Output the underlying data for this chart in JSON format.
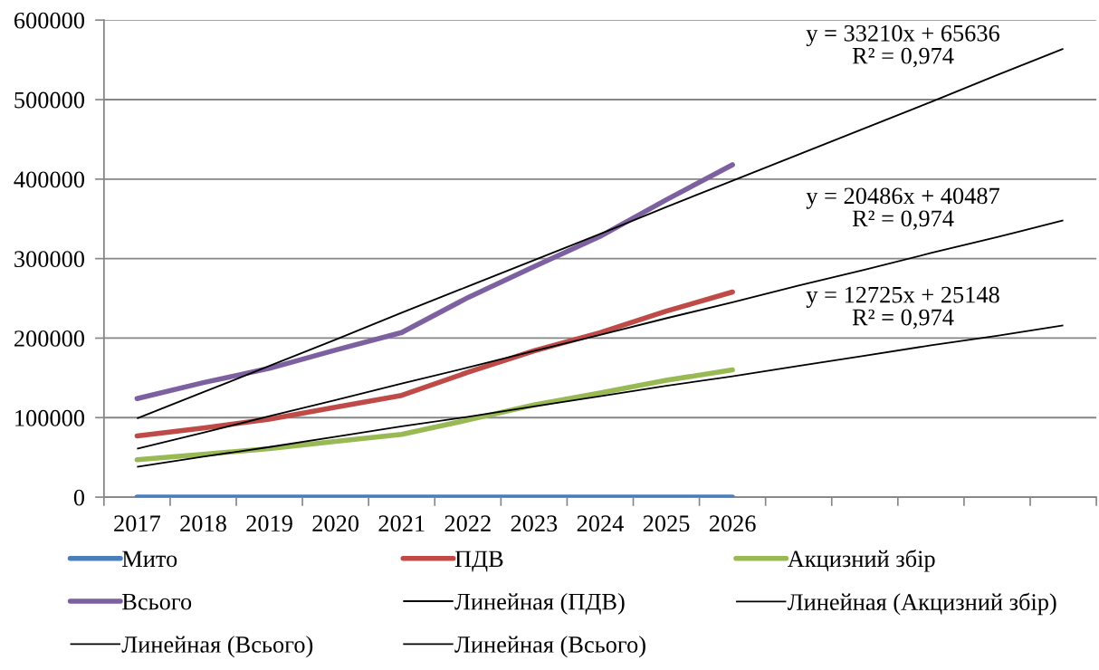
{
  "chart_data": {
    "type": "line",
    "categories": [
      "2017",
      "2018",
      "2019",
      "2020",
      "2021",
      "2022",
      "2023",
      "2024",
      "2025",
      "2026",
      null,
      null,
      null,
      null,
      null
    ],
    "series": [
      {
        "name": "Мито",
        "color": "#4a7ebb",
        "values": [
          0,
          0,
          0,
          0,
          0,
          0,
          0,
          0,
          0,
          0,
          null,
          null,
          null,
          null,
          null
        ]
      },
      {
        "name": "ПДВ",
        "color": "#be4b48",
        "values": [
          77000,
          87000,
          98000,
          113000,
          128000,
          157000,
          184000,
          207000,
          234000,
          258000,
          null,
          null,
          null,
          null,
          null
        ]
      },
      {
        "name": "Акцизний збір",
        "color": "#98b954",
        "values": [
          47000,
          54000,
          61000,
          70000,
          79000,
          97000,
          116000,
          131000,
          147000,
          160000,
          null,
          null,
          null,
          null,
          null
        ]
      },
      {
        "name": "Всього",
        "color": "#7d60a0",
        "values": [
          124000,
          144000,
          162000,
          185000,
          207000,
          251000,
          290000,
          328000,
          374000,
          418000,
          null,
          null,
          null,
          null,
          null
        ]
      },
      {
        "name": "Линейная (ПДВ)",
        "type": "line",
        "color": "#000000",
        "values": [
          61000,
          81000,
          102000,
          122000,
          143000,
          163000,
          184000,
          204000,
          225000,
          245000,
          266000,
          286000,
          307000,
          327000,
          348000
        ]
      },
      {
        "name": "Линейная (Акцизний збір)",
        "type": "line",
        "color": "#000000",
        "values": [
          38000,
          51000,
          63000,
          76000,
          89000,
          101000,
          114000,
          127000,
          140000,
          152000,
          165000,
          178000,
          191000,
          203000,
          216000
        ]
      },
      {
        "name": "Линейная (Всього)",
        "type": "line",
        "color": "#000000",
        "values": [
          99000,
          132000,
          165000,
          198000,
          232000,
          265000,
          298000,
          331000,
          365000,
          398000,
          431000,
          464000,
          497000,
          531000,
          564000
        ]
      },
      {
        "name": "Линейная (Всього)",
        "type": "line",
        "color": "#000000",
        "values": [
          null,
          null,
          null,
          null,
          null,
          null,
          null,
          null,
          null,
          null,
          null,
          null,
          null,
          null,
          null
        ]
      }
    ],
    "ylim": [
      0,
      600000
    ],
    "yticks": [
      0,
      100000,
      200000,
      300000,
      400000,
      500000,
      600000
    ],
    "grid": "y",
    "legend": "bottom",
    "annotations": [
      "y = 33210x + 65636\nR² = 0,974",
      "y = 20486x + 40487\nR² = 0,974",
      "y = 12725x + 25148\nR² = 0,974"
    ]
  }
}
